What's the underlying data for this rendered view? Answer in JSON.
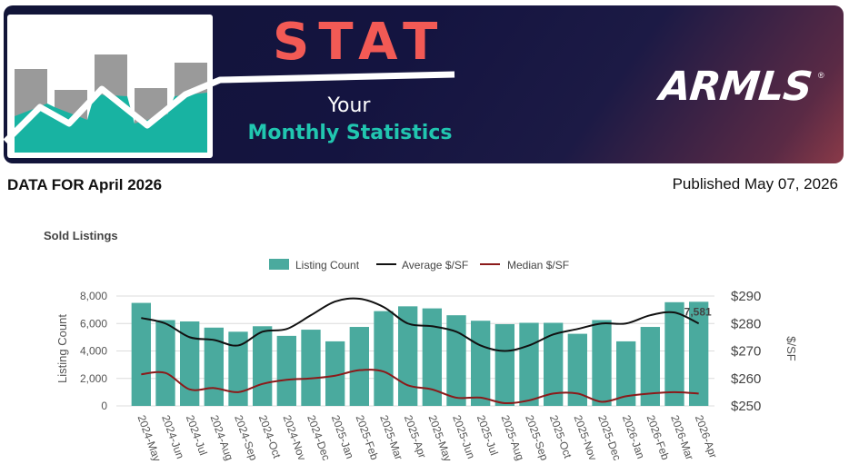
{
  "banner": {
    "title": "STAT",
    "subtitle_line1": "Your",
    "subtitle_line2": "Monthly Statistics",
    "logo_text": "ARMLS",
    "logo_mark": "®"
  },
  "header": {
    "data_for": "DATA FOR April 2026",
    "published": "Published May 07, 2026"
  },
  "colors": {
    "bar": "#4aaa9e",
    "average_line": "#111111",
    "median_line": "#8b1a1a",
    "title_accent": "#f25a55",
    "subtitle_accent": "#21c6b0"
  },
  "chart_data": {
    "type": "bar",
    "title": "Sold Listings",
    "categories": [
      "2024-May",
      "2024-Jun",
      "2024-Jul",
      "2024-Aug",
      "2024-Sep",
      "2024-Oct",
      "2024-Nov",
      "2024-Dec",
      "2025-Jan",
      "2025-Feb",
      "2025-Mar",
      "2025-Apr",
      "2025-May",
      "2025-Jun",
      "2025-Jul",
      "2025-Aug",
      "2025-Sep",
      "2025-Oct",
      "2025-Nov",
      "2025-Dec",
      "2026-Jan",
      "2026-Feb",
      "2026-Mar",
      "2026-Apr"
    ],
    "series": [
      {
        "name": "Listing Count",
        "type": "bar",
        "axis": "left",
        "values": [
          7500,
          6250,
          6150,
          5700,
          5400,
          5800,
          5100,
          5550,
          4700,
          5750,
          6900,
          7250,
          7100,
          6600,
          6200,
          5950,
          6050,
          6050,
          5250,
          6250,
          4700,
          5750,
          7550,
          7581
        ]
      },
      {
        "name": "Average $/SF",
        "type": "line",
        "axis": "right",
        "values": [
          282,
          280,
          275,
          274,
          272,
          277,
          278,
          283,
          288,
          289,
          286,
          280,
          279,
          277,
          272,
          270,
          272,
          276,
          278,
          280,
          280,
          283,
          284,
          280
        ]
      },
      {
        "name": "Median $/SF",
        "type": "line",
        "axis": "right",
        "values": [
          261.5,
          262,
          256,
          256.5,
          255,
          258,
          259.5,
          260,
          261,
          263,
          262.5,
          257.5,
          256,
          253,
          253,
          251,
          252,
          254.5,
          254.5,
          251.5,
          253.5,
          254.5,
          255,
          254.5
        ]
      }
    ],
    "ylabel": "Listing Count",
    "ylabel_right": "$/SF",
    "ylim": [
      0,
      8000
    ],
    "ylim_right": [
      250,
      290
    ],
    "yticks": [
      "0",
      "2,000",
      "4,000",
      "6,000",
      "8,000"
    ],
    "yticks_right": [
      "$250",
      "$260",
      "$270",
      "$280",
      "$290"
    ],
    "data_label": "7,581",
    "legend_position": "top-center",
    "grid": true
  }
}
